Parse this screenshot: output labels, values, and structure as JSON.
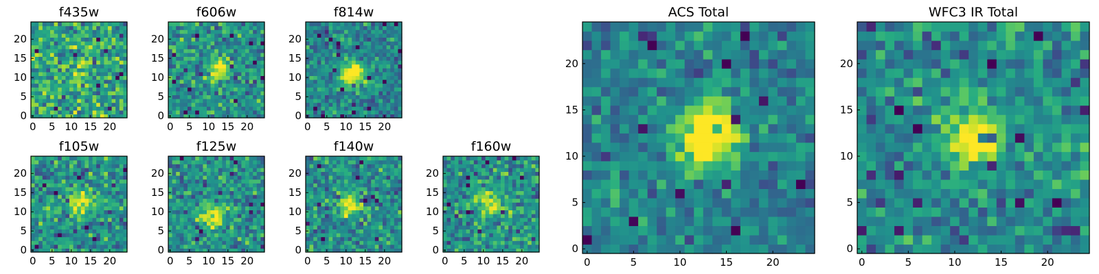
{
  "chart_data": [
    {
      "type": "heatmap",
      "title": "f435w",
      "grid": false,
      "xlim": [
        0,
        24
      ],
      "ylim": [
        0,
        24
      ],
      "xticks": [
        "0",
        "5",
        "10",
        "15",
        "20"
      ],
      "yticks": [
        "0",
        "5",
        "10",
        "15",
        "20"
      ],
      "rows": 25,
      "cols": 25,
      "peak": [
        12,
        12
      ],
      "peak_strength": 0.15,
      "colormap": "viridis"
    },
    {
      "type": "heatmap",
      "title": "f606w",
      "grid": false,
      "xlim": [
        0,
        24
      ],
      "ylim": [
        0,
        24
      ],
      "xticks": [
        "0",
        "5",
        "10",
        "15",
        "20"
      ],
      "yticks": [
        "0",
        "5",
        "10",
        "15",
        "20"
      ],
      "rows": 25,
      "cols": 25,
      "peak": [
        13,
        12
      ],
      "peak_strength": 0.45,
      "colormap": "viridis"
    },
    {
      "type": "heatmap",
      "title": "f814w",
      "grid": false,
      "xlim": [
        0,
        24
      ],
      "ylim": [
        0,
        24
      ],
      "xticks": [
        "0",
        "5",
        "10",
        "15",
        "20"
      ],
      "yticks": [
        "0",
        "5",
        "10",
        "15",
        "20"
      ],
      "rows": 25,
      "cols": 25,
      "peak": [
        12,
        11
      ],
      "peak_strength": 0.7,
      "colormap": "viridis"
    },
    {
      "type": "heatmap",
      "title": "f105w",
      "grid": false,
      "xlim": [
        0,
        24
      ],
      "ylim": [
        0,
        24
      ],
      "xticks": [
        "0",
        "5",
        "10",
        "15",
        "20"
      ],
      "yticks": [
        "0",
        "5",
        "10",
        "15",
        "20"
      ],
      "rows": 25,
      "cols": 25,
      "peak": [
        12,
        12
      ],
      "peak_strength": 0.45,
      "colormap": "viridis"
    },
    {
      "type": "heatmap",
      "title": "f125w",
      "grid": false,
      "xlim": [
        0,
        24
      ],
      "ylim": [
        0,
        24
      ],
      "xticks": [
        "0",
        "5",
        "10",
        "15",
        "20"
      ],
      "yticks": [
        "0",
        "5",
        "10",
        "15",
        "20"
      ],
      "rows": 25,
      "cols": 25,
      "peak": [
        11,
        9
      ],
      "peak_strength": 0.45,
      "colormap": "viridis"
    },
    {
      "type": "heatmap",
      "title": "f140w",
      "grid": false,
      "xlim": [
        0,
        24
      ],
      "ylim": [
        0,
        24
      ],
      "xticks": [
        "0",
        "5",
        "10",
        "15",
        "20"
      ],
      "yticks": [
        "0",
        "5",
        "10",
        "15",
        "20"
      ],
      "rows": 25,
      "cols": 25,
      "peak": [
        11,
        12
      ],
      "peak_strength": 0.55,
      "colormap": "viridis"
    },
    {
      "type": "heatmap",
      "title": "f160w",
      "grid": false,
      "xlim": [
        0,
        24
      ],
      "ylim": [
        0,
        24
      ],
      "xticks": [
        "0",
        "5",
        "10",
        "15",
        "20"
      ],
      "yticks": [
        "0",
        "5",
        "10",
        "15",
        "20"
      ],
      "rows": 25,
      "cols": 25,
      "peak": [
        12,
        12
      ],
      "peak_strength": 0.45,
      "colormap": "viridis"
    },
    {
      "type": "heatmap",
      "title": "ACS Total",
      "grid": false,
      "xlim": [
        0,
        24
      ],
      "ylim": [
        0,
        24
      ],
      "xticks": [
        "0",
        "5",
        "10",
        "15",
        "20"
      ],
      "yticks": [
        "0",
        "5",
        "10",
        "15",
        "20"
      ],
      "rows": 25,
      "cols": 25,
      "peak": [
        13,
        12
      ],
      "peak_strength": 0.75,
      "colormap": "viridis"
    },
    {
      "type": "heatmap",
      "title": "WFC3 IR Total",
      "grid": false,
      "xlim": [
        0,
        24
      ],
      "ylim": [
        0,
        24
      ],
      "xticks": [
        "0",
        "5",
        "10",
        "15",
        "20"
      ],
      "yticks": [
        "0",
        "5",
        "10",
        "15",
        "20"
      ],
      "rows": 25,
      "cols": 25,
      "peak": [
        12,
        12
      ],
      "peak_strength": 0.6,
      "colormap": "viridis"
    }
  ]
}
